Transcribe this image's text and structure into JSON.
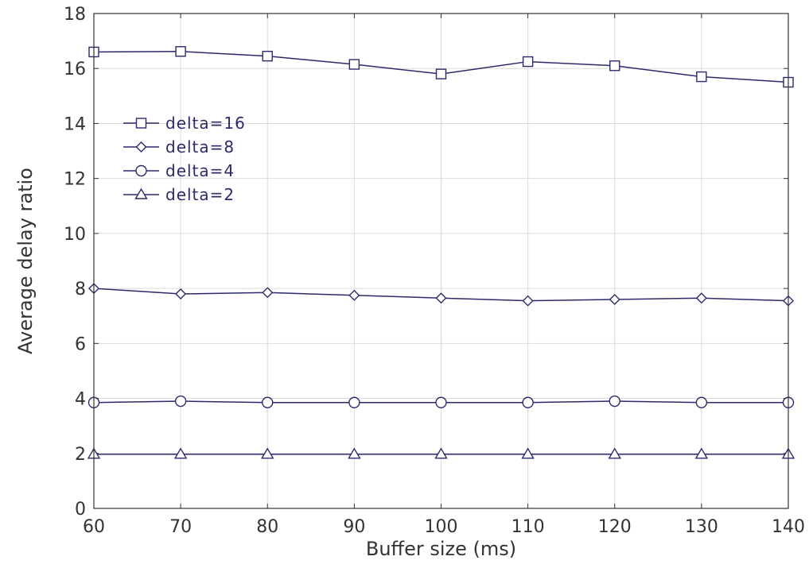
{
  "chart_data": {
    "type": "line",
    "title": "",
    "xlabel": "Buffer size (ms)",
    "ylabel": "Average delay ratio",
    "x": [
      60,
      70,
      80,
      90,
      100,
      110,
      120,
      130,
      140
    ],
    "xlim": [
      60,
      140
    ],
    "ylim": [
      0,
      18
    ],
    "xticks": [
      60,
      70,
      80,
      90,
      100,
      110,
      120,
      130,
      140
    ],
    "yticks": [
      0,
      2,
      4,
      6,
      8,
      10,
      12,
      14,
      16,
      18
    ],
    "grid": true,
    "legend_position": "upper-left",
    "line_color": "#2b2b6b",
    "series": [
      {
        "name": "delta=16",
        "marker": "square",
        "values": [
          16.6,
          16.62,
          16.45,
          16.15,
          15.8,
          16.25,
          16.1,
          15.7,
          15.5
        ]
      },
      {
        "name": "delta=8",
        "marker": "diamond",
        "values": [
          8.0,
          7.8,
          7.85,
          7.75,
          7.65,
          7.55,
          7.6,
          7.65,
          7.55
        ]
      },
      {
        "name": "delta=4",
        "marker": "circle",
        "values": [
          3.85,
          3.9,
          3.85,
          3.85,
          3.85,
          3.85,
          3.9,
          3.85,
          3.85
        ]
      },
      {
        "name": "delta=2",
        "marker": "triangle",
        "values": [
          1.97,
          1.97,
          1.97,
          1.97,
          1.97,
          1.97,
          1.97,
          1.97,
          1.97
        ]
      }
    ]
  }
}
